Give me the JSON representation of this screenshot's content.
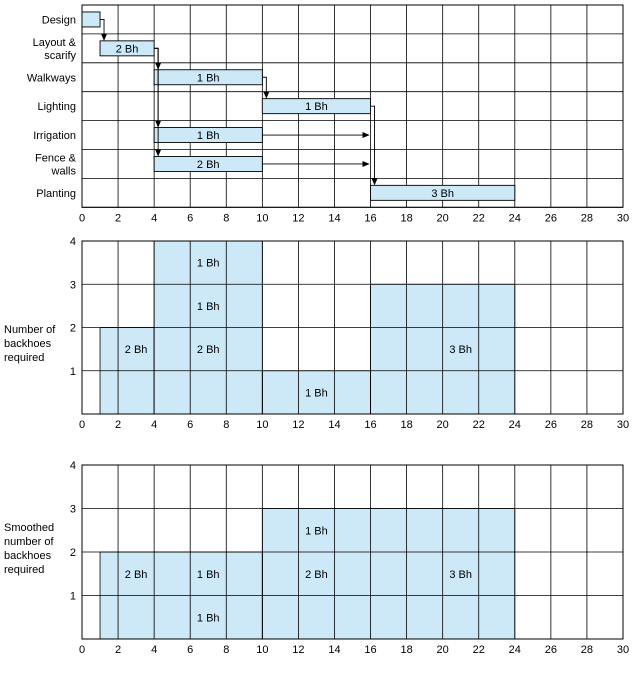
{
  "colors": {
    "bar_fill": "#cde8f7",
    "line": "#000000",
    "background": "#ffffff"
  },
  "chart_data": [
    {
      "type": "gantt",
      "x_ticks": [
        0,
        2,
        4,
        6,
        8,
        10,
        12,
        14,
        16,
        18,
        20,
        22,
        24,
        26,
        28,
        30
      ],
      "xlim": [
        0,
        30
      ],
      "grid": true,
      "activities": [
        {
          "label": [
            "Design"
          ],
          "start": 0,
          "end": 1,
          "bar_label": ""
        },
        {
          "label": [
            "Layout &",
            "scarify"
          ],
          "start": 1,
          "end": 4,
          "bar_label": "2 Bh"
        },
        {
          "label": [
            "Walkways"
          ],
          "start": 4,
          "end": 10,
          "bar_label": "1 Bh"
        },
        {
          "label": [
            "Lighting"
          ],
          "start": 10,
          "end": 16,
          "bar_label": "1 Bh"
        },
        {
          "label": [
            "Irrigation"
          ],
          "start": 4,
          "end": 10,
          "bar_label": "1 Bh"
        },
        {
          "label": [
            "Fence &",
            "walls"
          ],
          "start": 4,
          "end": 10,
          "bar_label": "2 Bh"
        },
        {
          "label": [
            "Planting"
          ],
          "start": 16,
          "end": 24,
          "bar_label": "3 Bh"
        }
      ],
      "links": [
        {
          "from": 0,
          "to": 1
        },
        {
          "from": 1,
          "to": 2
        },
        {
          "from": 1,
          "to": 4
        },
        {
          "from": 1,
          "to": 5
        },
        {
          "from": 2,
          "to": 3
        },
        {
          "from": 3,
          "to": 6
        },
        {
          "from": 4,
          "to": 6,
          "free_float": true
        },
        {
          "from": 5,
          "to": 6,
          "free_float": true
        }
      ]
    },
    {
      "type": "area",
      "ylabel": [
        "Number of",
        "backhoes",
        "required"
      ],
      "x_ticks": [
        0,
        2,
        4,
        6,
        8,
        10,
        12,
        14,
        16,
        18,
        20,
        22,
        24,
        26,
        28,
        30
      ],
      "y_ticks": [
        1,
        2,
        3,
        4
      ],
      "xlim": [
        0,
        30
      ],
      "ylim": [
        0,
        4
      ],
      "grid": true,
      "steps": [
        {
          "start": 1,
          "end": 4,
          "value": 2
        },
        {
          "start": 4,
          "end": 10,
          "value": 4
        },
        {
          "start": 10,
          "end": 16,
          "value": 1
        },
        {
          "start": 16,
          "end": 24,
          "value": 3
        }
      ],
      "labels": [
        {
          "text": "2 Bh",
          "x": 3,
          "y": 1.5
        },
        {
          "text": "1 Bh",
          "x": 7,
          "y": 3.5
        },
        {
          "text": "1 Bh",
          "x": 7,
          "y": 2.5
        },
        {
          "text": "2 Bh",
          "x": 7,
          "y": 1.5
        },
        {
          "text": "1 Bh",
          "x": 13,
          "y": 0.5
        },
        {
          "text": "3 Bh",
          "x": 21,
          "y": 1.5
        }
      ]
    },
    {
      "type": "area",
      "ylabel": [
        "Smoothed",
        "number of",
        "backhoes",
        "required"
      ],
      "x_ticks": [
        0,
        2,
        4,
        6,
        8,
        10,
        12,
        14,
        16,
        18,
        20,
        22,
        24,
        26,
        28,
        30
      ],
      "y_ticks": [
        1,
        2,
        3,
        4
      ],
      "xlim": [
        0,
        30
      ],
      "ylim": [
        0,
        4
      ],
      "grid": true,
      "steps": [
        {
          "start": 1,
          "end": 10,
          "value": 2
        },
        {
          "start": 10,
          "end": 24,
          "value": 3
        }
      ],
      "labels": [
        {
          "text": "2 Bh",
          "x": 3,
          "y": 1.5
        },
        {
          "text": "1 Bh",
          "x": 7,
          "y": 1.5
        },
        {
          "text": "1 Bh",
          "x": 7,
          "y": 0.5
        },
        {
          "text": "1 Bh",
          "x": 13,
          "y": 2.5
        },
        {
          "text": "2 Bh",
          "x": 13,
          "y": 1.5
        },
        {
          "text": "3 Bh",
          "x": 21,
          "y": 1.5
        }
      ]
    }
  ]
}
